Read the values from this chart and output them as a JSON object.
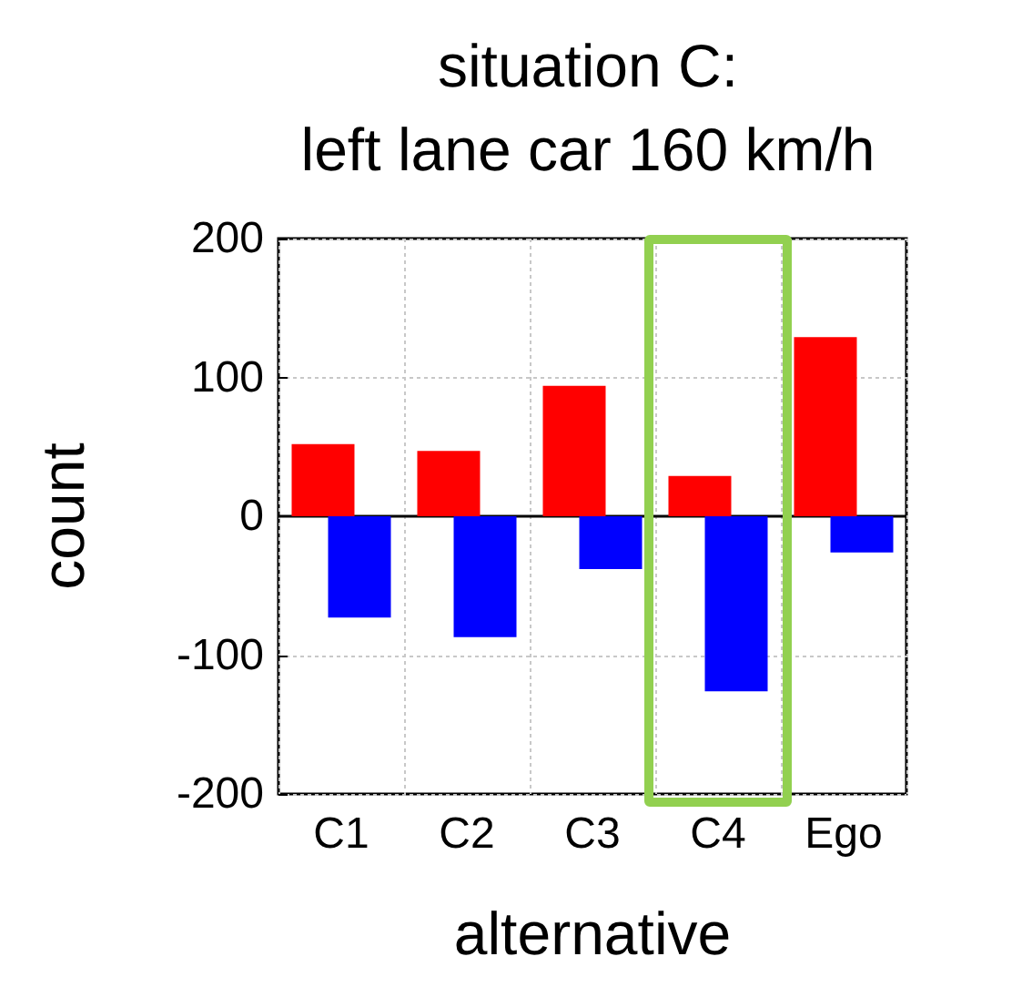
{
  "chart_data": {
    "type": "bar",
    "title": "situation C:\nleft lane car 160 km/h",
    "xlabel": "alternative",
    "ylabel": "count",
    "categories": [
      "C1",
      "C2",
      "C3",
      "C4",
      "Ego"
    ],
    "series": [
      {
        "color": "#ff0000",
        "values": [
          52,
          47,
          94,
          29,
          129
        ]
      },
      {
        "color": "#0000ff",
        "values": [
          -73,
          -87,
          -38,
          -126,
          -26
        ]
      }
    ],
    "ylim": [
      -200,
      200
    ],
    "yticks": [
      -200,
      -100,
      0,
      100,
      200
    ],
    "grid": true
  }
}
